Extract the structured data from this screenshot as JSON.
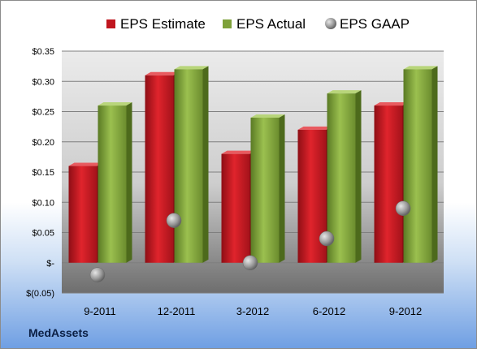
{
  "company_label": "MedAssets",
  "chart_data": {
    "type": "bar",
    "categories": [
      "9-2011",
      "12-2011",
      "3-2012",
      "6-2012",
      "9-2012"
    ],
    "series": [
      {
        "name": "EPS Estimate",
        "type": "bar",
        "color": "#c0161f",
        "values": [
          0.16,
          0.31,
          0.18,
          0.22,
          0.26
        ]
      },
      {
        "name": "EPS Actual",
        "type": "bar",
        "color": "#7ea13a",
        "values": [
          0.26,
          0.32,
          0.24,
          0.28,
          0.32
        ]
      },
      {
        "name": "EPS GAAP",
        "type": "scatter",
        "marker": "sphere",
        "color": "#9a9a9a",
        "values": [
          -0.02,
          0.07,
          0.0,
          0.04,
          0.09
        ]
      }
    ],
    "ylim": [
      -0.05,
      0.35
    ],
    "yticks": [
      -0.05,
      0,
      0.05,
      0.1,
      0.15,
      0.2,
      0.25,
      0.3,
      0.35
    ],
    "ytick_labels": [
      "$(0.05)",
      "$-",
      "$0.05",
      "$0.10",
      "$0.15",
      "$0.20",
      "$0.25",
      "$0.30",
      "$0.35"
    ],
    "legend_position": "top",
    "grid": true
  }
}
